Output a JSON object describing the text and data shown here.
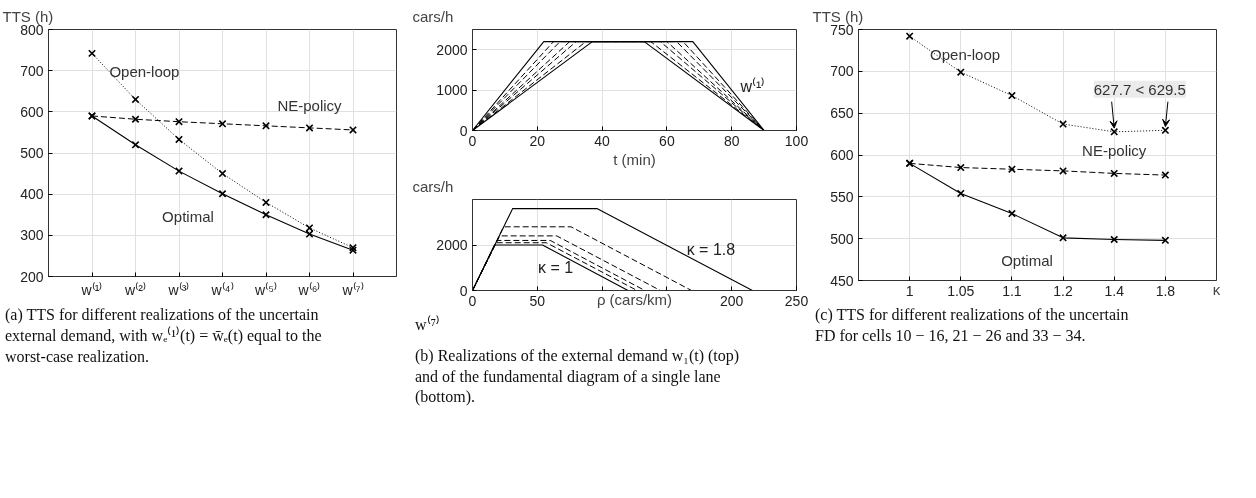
{
  "chart_data": [
    {
      "type": "line",
      "ylabel": "TTS (h)",
      "categories": [
        "w⁽¹⁾",
        "w⁽²⁾",
        "w⁽³⁾",
        "w⁽⁴⁾",
        "w⁽⁵⁾",
        "w⁽⁶⁾",
        "w⁽⁷⁾"
      ],
      "ylim": [
        200,
        800
      ],
      "yticks": [
        200,
        300,
        400,
        500,
        600,
        700,
        800
      ],
      "grid": true,
      "marker": "cross",
      "series": [
        {
          "name": "Open-loop",
          "color": "#000000",
          "line_style": "dotted",
          "values": [
            742,
            630,
            533,
            450,
            380,
            318,
            270
          ]
        },
        {
          "name": "NE-policy",
          "color": "#000000",
          "line_style": "dashed",
          "values": [
            590,
            582,
            576,
            571,
            566,
            561,
            556
          ]
        },
        {
          "name": "Optimal",
          "color": "#000000",
          "line_style": "solid",
          "values": [
            590,
            520,
            456,
            401,
            350,
            303,
            264
          ]
        }
      ],
      "annotations": [
        "(a) TTS for different realizations of the uncertain external demand, with wₑ⁽¹⁾(t) = w̄ₑ(t) equal to the worst-case realization."
      ]
    },
    {
      "type": "line",
      "ylabel": "cars/h",
      "xlabel": "t (min)",
      "xlim": [
        0,
        100
      ],
      "xticks": [
        0,
        20,
        40,
        60,
        80,
        100
      ],
      "ylim": [
        0,
        2500
      ],
      "yticks": [
        0,
        1000,
        2000
      ],
      "grid": true,
      "series": [
        {
          "color": "#000000",
          "line_style": "solid",
          "x": [
            0,
            22,
            68,
            90,
            100
          ],
          "values": [
            0,
            2200,
            2200,
            0,
            0
          ]
        },
        {
          "color": "#000000",
          "line_style": "dashed",
          "x": [
            0,
            25,
            65,
            90,
            100
          ],
          "values": [
            0,
            2200,
            2200,
            0,
            0
          ]
        },
        {
          "color": "#000000",
          "line_style": "dashed",
          "x": [
            0,
            27,
            63,
            90,
            100
          ],
          "values": [
            0,
            2200,
            2200,
            0,
            0
          ]
        },
        {
          "color": "#000000",
          "line_style": "dashed",
          "x": [
            0,
            30,
            60,
            90,
            100
          ],
          "values": [
            0,
            2200,
            2200,
            0,
            0
          ]
        },
        {
          "color": "#000000",
          "line_style": "dashed",
          "x": [
            0,
            32,
            58,
            90,
            100
          ],
          "values": [
            0,
            2200,
            2200,
            0,
            0
          ]
        },
        {
          "color": "#000000",
          "line_style": "dashed",
          "x": [
            0,
            35,
            55,
            90,
            100
          ],
          "values": [
            0,
            2200,
            2200,
            0,
            0
          ]
        },
        {
          "color": "#000000",
          "line_style": "solid",
          "x": [
            0,
            37,
            53,
            90,
            100
          ],
          "values": [
            0,
            2200,
            2200,
            0,
            0
          ]
        }
      ],
      "annotations": [
        "w⁽¹⁾",
        "w⁽⁷⁾"
      ]
    },
    {
      "type": "line",
      "ylabel": "cars/h",
      "xlabel": "ρ (cars/km)",
      "xlim": [
        0,
        250
      ],
      "xticks": [
        0,
        50,
        {
          "value": 100,
          "label": null
        },
        {
          "value": 150,
          "label": null
        },
        200,
        250
      ],
      "ylim": [
        0,
        4000
      ],
      "yticks": [
        0,
        2000
      ],
      "grid": true,
      "series": [
        {
          "color": "#000000",
          "line_style": "solid",
          "x": [
            0,
            17,
            54,
            120
          ],
          "values": [
            0,
            2000,
            2000,
            0
          ]
        },
        {
          "color": "#000000",
          "line_style": "dashed",
          "x": [
            0,
            18,
            57,
            127
          ],
          "values": [
            0,
            2100,
            2100,
            0
          ]
        },
        {
          "color": "#000000",
          "line_style": "dashed",
          "x": [
            0,
            19,
            60,
            133
          ],
          "values": [
            0,
            2200,
            2200,
            0
          ]
        },
        {
          "color": "#000000",
          "line_style": "dashed",
          "x": [
            0,
            21,
            65,
            145
          ],
          "values": [
            0,
            2400,
            2400,
            0
          ]
        },
        {
          "color": "#000000",
          "line_style": "dashed",
          "x": [
            0,
            24,
            76,
            169
          ],
          "values": [
            0,
            2800,
            2800,
            0
          ]
        },
        {
          "color": "#000000",
          "line_style": "solid",
          "x": [
            0,
            31,
            96,
            216
          ],
          "values": [
            0,
            3600,
            3600,
            0
          ]
        }
      ],
      "annotations": [
        "κ = 1",
        "κ = 1.8",
        "(b) Realizations of the external demand w₁(t) (top) and of the fundamental diagram of a single lane (bottom)."
      ]
    },
    {
      "type": "line",
      "ylabel": "TTS (h)",
      "xlabel": "κ",
      "categories": [
        "1",
        "1.05",
        "1.1",
        "1.2",
        "1.4",
        "1.8"
      ],
      "ylim": [
        450,
        750
      ],
      "yticks": [
        450,
        500,
        550,
        600,
        650,
        700,
        750
      ],
      "grid": true,
      "marker": "cross",
      "series": [
        {
          "name": "Open-loop",
          "color": "#000000",
          "line_style": "dotted",
          "values": [
            742,
            699,
            671,
            637,
            627.7,
            629.5
          ]
        },
        {
          "name": "NE-policy",
          "color": "#000000",
          "line_style": "dashed",
          "values": [
            590,
            585,
            583,
            581,
            578,
            576
          ]
        },
        {
          "name": "Optimal",
          "color": "#000000",
          "line_style": "solid",
          "values": [
            590,
            554,
            530,
            501,
            499,
            498
          ]
        }
      ],
      "annotations": [
        {
          "text": "627.7 < 629.5",
          "x": "1.4",
          "y": 627.7
        },
        "(c) TTS for different realizations of the uncertain FD for cells 10 − 16, 21 − 26 and 33 − 34."
      ]
    }
  ]
}
